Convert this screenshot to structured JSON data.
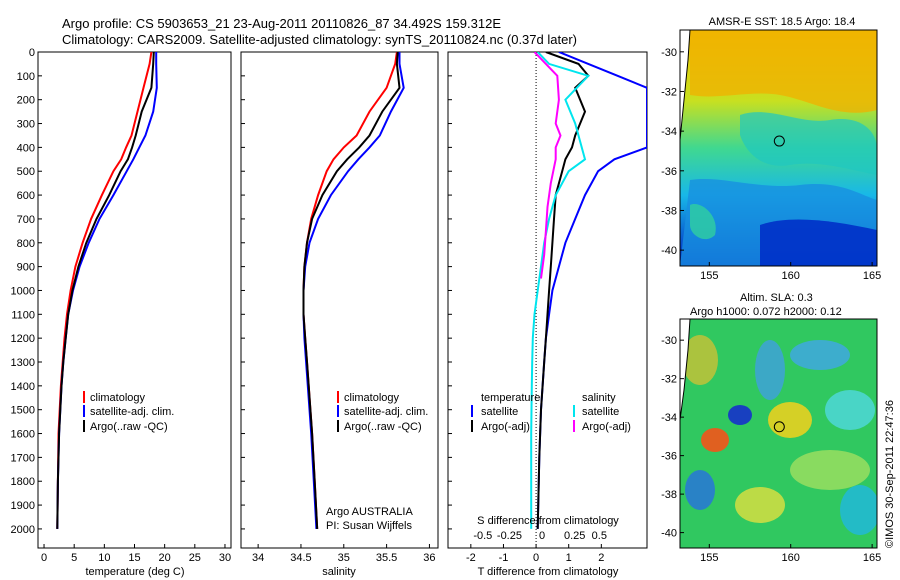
{
  "title_line1": "Argo profile: CS 5903653_21 23-Aug-2011 20110826_87 34.492S 159.312E",
  "title_line2": "Climatology: CARS2009. Satellite-adjusted climatology: synTS_20110824.nc (0.37d later)",
  "side_text": "©IMOS 30-Sep-2011 22:47:36",
  "colors": {
    "climatology": "#ff0000",
    "satellite": "#0000ff",
    "argo": "#000000",
    "sat_salinity": "#00e5ee",
    "argo_salinity_diff": "#ff00ff"
  },
  "chart_data": [
    {
      "type": "line",
      "name": "temperature_profile",
      "xlabel": "temperature (deg C)",
      "ylabel": "",
      "xlim": [
        -1,
        31
      ],
      "ylim": [
        2080,
        0
      ],
      "xticks": [
        0,
        5,
        10,
        15,
        20,
        25,
        30
      ],
      "yticks": [
        0,
        100,
        200,
        300,
        400,
        500,
        600,
        700,
        800,
        900,
        1000,
        1100,
        1200,
        1300,
        1400,
        1500,
        1600,
        1700,
        1800,
        1900,
        2000
      ],
      "legend": [
        "climatology",
        "satellite-adj. clim.",
        "Argo(..raw -QC)"
      ],
      "series": [
        {
          "name": "climatology",
          "color": "#ff0000",
          "x": [
            17.8,
            17.5,
            16.5,
            15.5,
            14.5,
            13.6,
            12.8,
            11.5,
            9.6,
            7.8,
            6.4,
            5.2,
            4.4,
            3.8,
            3.4,
            3.1,
            2.8,
            2.6,
            2.4,
            2.3,
            2.2
          ],
          "y": [
            0,
            50,
            150,
            250,
            350,
            400,
            450,
            500,
            600,
            700,
            800,
            900,
            1000,
            1100,
            1200,
            1300,
            1400,
            1500,
            1600,
            1800,
            2000
          ]
        },
        {
          "name": "satellite-adj. clim.",
          "color": "#0000ff",
          "x": [
            18.6,
            18.6,
            18.7,
            18.1,
            16.8,
            15.8,
            14.8,
            13.7,
            11.5,
            9.2,
            7.4,
            5.9,
            4.8,
            4.0,
            3.6,
            3.2,
            2.9,
            2.7,
            2.5,
            2.3,
            2.2
          ],
          "y": [
            0,
            50,
            150,
            250,
            350,
            400,
            450,
            500,
            600,
            700,
            800,
            900,
            1000,
            1100,
            1200,
            1300,
            1400,
            1500,
            1600,
            1800,
            2000
          ]
        },
        {
          "name": "Argo(..raw -QC)",
          "color": "#000000",
          "x": [
            18.2,
            18.1,
            17.8,
            16.2,
            15.2,
            14.6,
            13.9,
            12.7,
            10.8,
            8.7,
            7.0,
            5.7,
            4.7,
            4.0,
            3.6,
            3.2,
            2.9,
            2.7,
            2.5,
            2.3,
            2.2
          ],
          "y": [
            0,
            50,
            150,
            250,
            350,
            400,
            450,
            500,
            600,
            700,
            800,
            900,
            1000,
            1100,
            1200,
            1300,
            1400,
            1500,
            1600,
            1800,
            2000
          ]
        }
      ]
    },
    {
      "type": "line",
      "name": "salinity_profile",
      "xlabel": "salinity",
      "ylabel": "",
      "xlim": [
        33.8,
        36.1
      ],
      "ylim": [
        2080,
        0
      ],
      "xticks": [
        34,
        34.5,
        35,
        35.5,
        36
      ],
      "legend": [
        "climatology",
        "satellite-adj. clim.",
        "Argo(..raw -QC)"
      ],
      "annotation": [
        "Argo AUSTRALIA",
        "PI: Susan Wijffels"
      ],
      "series": [
        {
          "name": "climatology",
          "color": "#ff0000",
          "x": [
            35.62,
            35.6,
            35.5,
            35.3,
            35.15,
            35.0,
            34.88,
            34.8,
            34.7,
            34.62,
            34.57,
            34.54,
            34.53,
            34.53,
            34.55,
            34.57,
            34.59,
            34.61,
            34.63,
            34.66,
            34.69
          ],
          "y": [
            0,
            50,
            150,
            250,
            350,
            400,
            450,
            500,
            600,
            700,
            800,
            900,
            1000,
            1100,
            1200,
            1300,
            1400,
            1500,
            1600,
            1800,
            2000
          ]
        },
        {
          "name": "satellite-adj. clim.",
          "color": "#0000ff",
          "x": [
            35.65,
            35.65,
            35.7,
            35.55,
            35.42,
            35.3,
            35.17,
            35.05,
            34.85,
            34.7,
            34.6,
            34.55,
            34.53,
            34.53,
            34.54,
            34.56,
            34.58,
            34.6,
            34.62,
            34.65,
            34.68
          ],
          "y": [
            0,
            50,
            150,
            250,
            350,
            400,
            450,
            500,
            600,
            700,
            800,
            900,
            1000,
            1100,
            1200,
            1300,
            1400,
            1500,
            1600,
            1800,
            2000
          ]
        },
        {
          "name": "Argo(..raw -QC)",
          "color": "#000000",
          "x": [
            35.63,
            35.62,
            35.65,
            35.45,
            35.3,
            35.18,
            35.04,
            34.92,
            34.75,
            34.63,
            34.57,
            34.54,
            34.53,
            34.53,
            34.55,
            34.57,
            34.59,
            34.61,
            34.63,
            34.66,
            34.69
          ],
          "y": [
            0,
            50,
            150,
            250,
            350,
            400,
            450,
            500,
            600,
            700,
            800,
            900,
            1000,
            1100,
            1200,
            1300,
            1400,
            1500,
            1600,
            1800,
            2000
          ]
        }
      ]
    },
    {
      "type": "line",
      "name": "difference_profile",
      "xlabel_top": "S difference from climatology",
      "xlabel": "T difference from climatology",
      "xlim": [
        -2.7,
        3.4
      ],
      "ylim": [
        2080,
        0
      ],
      "xticks_T": [
        -2,
        -1,
        0,
        1,
        2
      ],
      "xticks_S_labels": [
        "-0.5",
        "-0.25",
        "0",
        "0.25",
        "0.5"
      ],
      "legend_temperature_header": "temperature",
      "legend_salinity_header": "salinity",
      "legend_temperature": [
        "satellite",
        "Argo(-adj)"
      ],
      "legend_salinity": [
        "satellite",
        "Argo(-adj)"
      ],
      "series": [
        {
          "name": "satellite",
          "quantity": "temperature",
          "color": "#0000ff",
          "x": [
            0.7,
            1.6,
            2.5,
            3.4,
            3.4,
            3.4,
            3.4,
            2.4,
            1.9,
            1.5,
            1.2,
            0.9,
            0.7,
            0.5,
            0.4,
            0.3,
            0.25,
            0.2,
            0.15,
            0.1,
            0.05
          ],
          "y": [
            0,
            50,
            100,
            150,
            250,
            350,
            400,
            450,
            500,
            600,
            700,
            800,
            900,
            1000,
            1100,
            1200,
            1300,
            1400,
            1500,
            1700,
            2000
          ]
        },
        {
          "name": "Argo(-adj)",
          "quantity": "temperature",
          "color": "#000000",
          "x": [
            0.3,
            1.3,
            1.6,
            1.2,
            1.5,
            1.2,
            1.1,
            0.9,
            0.8,
            0.6,
            0.55,
            0.5,
            0.45,
            0.4,
            0.35,
            0.3,
            0.25,
            0.2,
            0.15,
            0.1,
            0.05
          ],
          "y": [
            0,
            50,
            100,
            150,
            250,
            350,
            400,
            450,
            500,
            600,
            700,
            800,
            900,
            1000,
            1100,
            1200,
            1300,
            1400,
            1500,
            1700,
            2000
          ]
        },
        {
          "name": "satellite",
          "quantity": "salinity",
          "color": "#00e5ee",
          "x": [
            0.05,
            0.4,
            1.6,
            0.9,
            1.2,
            1.3,
            1.5,
            1.0,
            0.6,
            0.4,
            0.25,
            0.15,
            0.05,
            -0.05,
            -0.1,
            -0.12,
            -0.13,
            -0.14,
            -0.15,
            -0.15,
            -0.15
          ],
          "y": [
            0,
            50,
            100,
            200,
            300,
            350,
            450,
            500,
            600,
            700,
            800,
            900,
            1000,
            1100,
            1200,
            1300,
            1400,
            1500,
            1600,
            1800,
            2000
          ]
        },
        {
          "name": "Argo(-adj)",
          "quantity": "salinity",
          "color": "#ff00ff",
          "x": [
            -0.05,
            0.3,
            0.65,
            0.7,
            0.6,
            0.75,
            0.6,
            0.6,
            0.45,
            0.35,
            0.3,
            0.25,
            0.15
          ],
          "y": [
            0,
            50,
            100,
            200,
            300,
            350,
            400,
            450,
            550,
            650,
            750,
            850,
            950
          ]
        }
      ]
    },
    {
      "type": "heatmap",
      "name": "sst_map",
      "title": "AMSR-E SST: 18.5  Argo: 18.4",
      "xticks": [
        155,
        160,
        165
      ],
      "yticks": [
        -30,
        -32,
        -34,
        -36,
        -38,
        -40
      ],
      "xlim": [
        153.2,
        165.3
      ],
      "ylim": [
        -40.8,
        -28.9
      ],
      "argo_position": [
        159.3,
        -34.5
      ]
    },
    {
      "type": "heatmap",
      "name": "sla_map",
      "title_line1": "Altim. SLA: 0.3",
      "title_line2": "Argo h1000: 0.072 h2000: 0.12",
      "xticks": [
        155,
        160,
        165
      ],
      "yticks": [
        -30,
        -32,
        -34,
        -36,
        -38,
        -40
      ],
      "xlim": [
        153.2,
        165.3
      ],
      "ylim": [
        -40.8,
        -28.9
      ],
      "argo_position": [
        159.3,
        -34.5
      ]
    }
  ]
}
